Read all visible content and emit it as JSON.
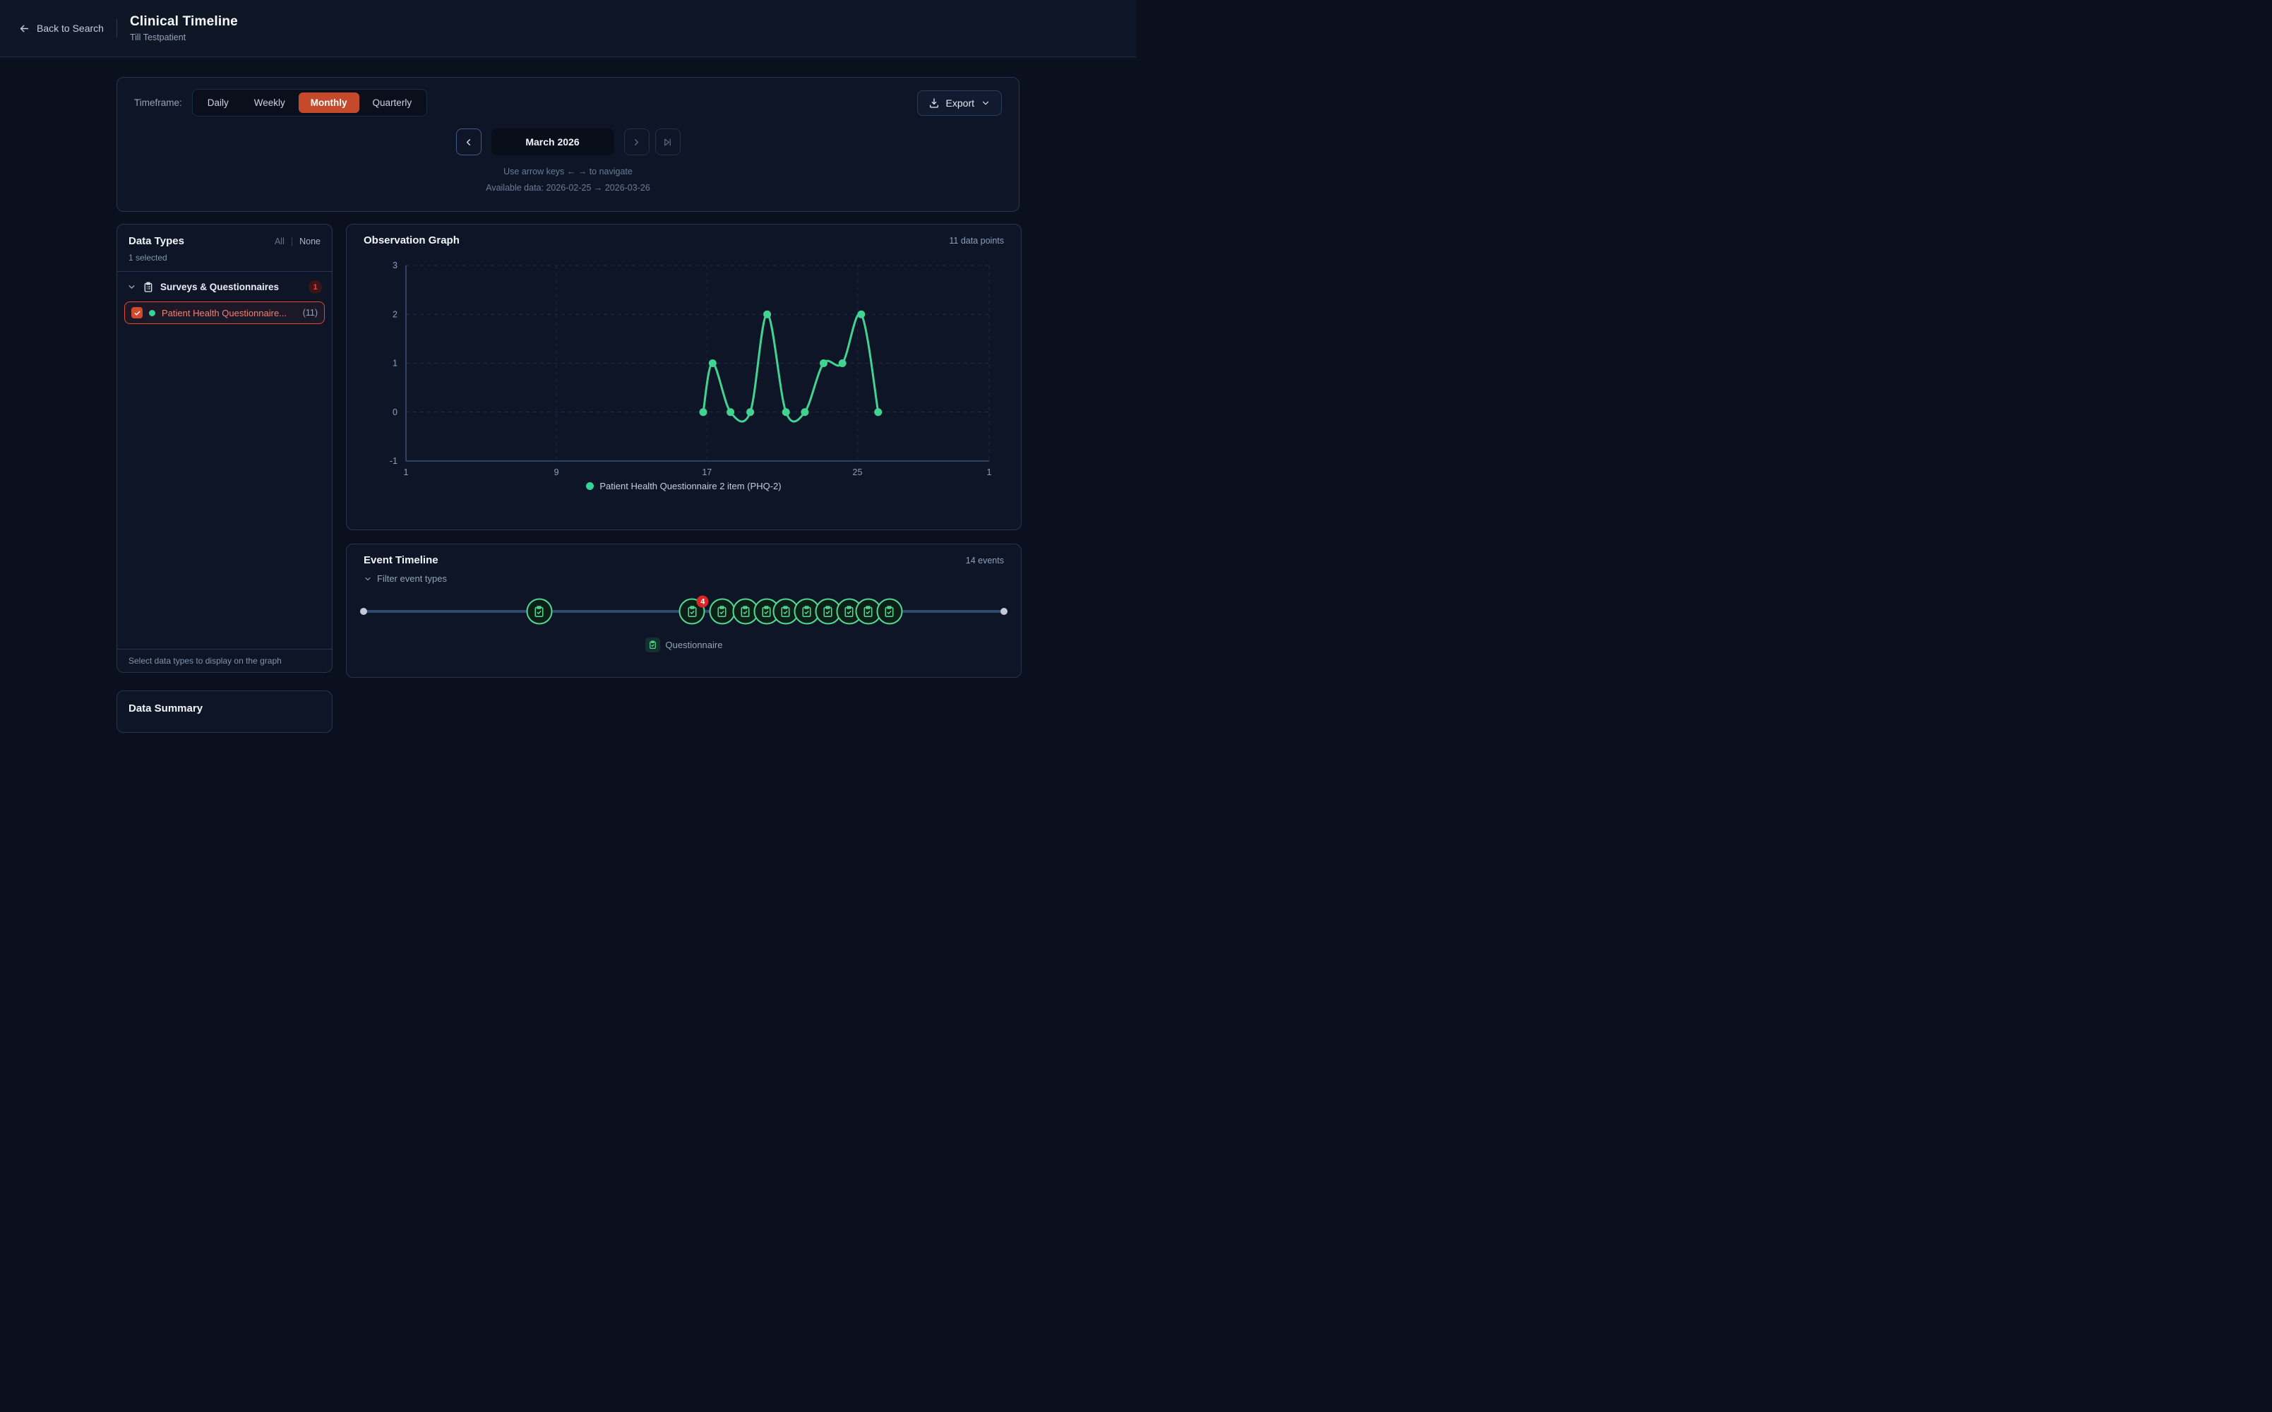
{
  "header": {
    "back_label": "Back to Search",
    "title": "Clinical Timeline",
    "subtitle": "Till Testpatient"
  },
  "toolbar": {
    "timeframe_label": "Timeframe:",
    "options": [
      "Daily",
      "Weekly",
      "Monthly",
      "Quarterly"
    ],
    "active_option": "Monthly",
    "export_label": "Export",
    "period_label": "March 2026",
    "hint": "Use arrow keys ← → to navigate",
    "available": "Available data: 2026-02-25 → 2026-03-26"
  },
  "sidebar": {
    "title": "Data Types",
    "all_label": "All",
    "separator": "|",
    "none_label": "None",
    "selected_summary": "1 selected",
    "group": {
      "label": "Surveys & Questionnaires",
      "badge": "1"
    },
    "item": {
      "label": "Patient Health Questionnaire...",
      "count": "(11)"
    },
    "footer": "Select data types to display on the graph"
  },
  "bottom_card": {
    "title": "Data Summary"
  },
  "observation": {
    "title": "Observation Graph",
    "count_label": "11 data points",
    "legend": "Patient Health Questionnaire 2 item (PHQ-2)"
  },
  "chart_data": {
    "type": "line",
    "title": "Observation Graph",
    "series": [
      {
        "name": "Patient Health Questionnaire 2 item (PHQ-2)",
        "points": [
          {
            "x": 16.8,
            "y": 0
          },
          {
            "x": 17.3,
            "y": 1
          },
          {
            "x": 18.25,
            "y": 0
          },
          {
            "x": 19.3,
            "y": 0
          },
          {
            "x": 20.2,
            "y": 2
          },
          {
            "x": 21.2,
            "y": 0
          },
          {
            "x": 22.2,
            "y": 0
          },
          {
            "x": 23.2,
            "y": 1
          },
          {
            "x": 24.2,
            "y": 1
          },
          {
            "x": 25.2,
            "y": 2
          },
          {
            "x": 26.1,
            "y": 0
          }
        ]
      }
    ],
    "xlim": [
      1,
      32
    ],
    "ylim": [
      -1,
      3
    ],
    "x_ticks": [
      {
        "v": 1,
        "label": "1"
      },
      {
        "v": 9,
        "label": "9"
      },
      {
        "v": 17,
        "label": "17"
      },
      {
        "v": 25,
        "label": "25"
      },
      {
        "v": 32,
        "label": "1"
      }
    ],
    "y_ticks": [
      -1,
      0,
      1,
      2,
      3
    ],
    "grid": true,
    "legend_position": "bottom",
    "line_color": "#42d392",
    "point_radius": 5.5
  },
  "events": {
    "title": "Event Timeline",
    "count_label": "14 events",
    "filter_label": "Filter event types",
    "legend_label": "Questionnaire",
    "marker_icon": "clipboard-check-icon",
    "markers": [
      {
        "pos_pct": 27.4
      },
      {
        "pos_pct": 51.3,
        "badge": "4"
      },
      {
        "pos_pct": 56.0
      },
      {
        "pos_pct": 59.6
      },
      {
        "pos_pct": 62.9
      },
      {
        "pos_pct": 65.9
      },
      {
        "pos_pct": 69.2
      },
      {
        "pos_pct": 72.5
      },
      {
        "pos_pct": 75.8
      },
      {
        "pos_pct": 78.8
      },
      {
        "pos_pct": 82.1
      }
    ]
  },
  "colors": {
    "accent_orange": "#c54a2c",
    "selected_red": "#de4a2e",
    "badge_red": "#dc2626",
    "chart_green": "#42d392",
    "legend_green": "#34d399",
    "marker_green": "#52da92"
  }
}
